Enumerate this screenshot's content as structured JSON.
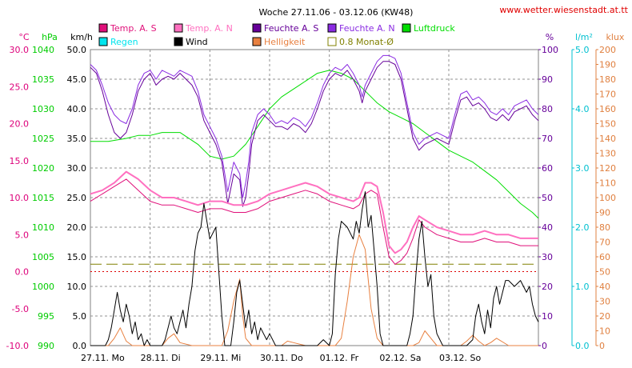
{
  "title": "Woche 27.11.06 - 03.12.06 (KW48)",
  "site": "www.wetter.wiesenstadt.at.tt",
  "chart_data": {
    "type": "line",
    "x_days": [
      "27.11. Mo",
      "28.11. Di",
      "29.11. Mi",
      "30.11. Do",
      "01.12. Fr",
      "02.12. Sa",
      "03.12. So"
    ],
    "xlim_days": [
      0,
      7.5
    ],
    "axes": [
      {
        "key": "temp",
        "unit": "°C",
        "lim": [
          -10,
          30
        ],
        "step": 5,
        "decimals": 1,
        "color": "#dd007a",
        "side": "left"
      },
      {
        "key": "pres",
        "unit": "hPa",
        "lim": [
          990,
          1040
        ],
        "step": 5,
        "decimals": 0,
        "color": "#00cc00",
        "side": "left"
      },
      {
        "key": "wind",
        "unit": "km/h",
        "lim": [
          0,
          50
        ],
        "step": 5,
        "decimals": 1,
        "color": "#000000",
        "side": "left"
      },
      {
        "key": "hum",
        "unit": "%",
        "lim": [
          0,
          100
        ],
        "step": 10,
        "decimals": 0,
        "color": "#660099",
        "side": "right"
      },
      {
        "key": "rain",
        "unit": "l/m²",
        "lim": [
          0,
          5
        ],
        "step": 1,
        "decimals": 1,
        "color": "#00c0d0",
        "side": "right"
      },
      {
        "key": "lux",
        "unit": "klux",
        "lim": [
          0,
          200
        ],
        "step": 10,
        "decimals": 0,
        "color": "#e08040",
        "side": "right"
      }
    ],
    "legend": [
      {
        "label": "Temp. A. S",
        "color": "#e0107a"
      },
      {
        "label": "Temp. A. N",
        "color": "#ff70c0"
      },
      {
        "label": "Feuchte A. S",
        "color": "#660099"
      },
      {
        "label": "Feuchte A. N",
        "color": "#8a2be2"
      },
      {
        "label": "Luftdruck",
        "color": "#00dd00"
      },
      {
        "label": "Regen",
        "color": "#00e5ee"
      },
      {
        "label": "Wind",
        "color": "#000000"
      },
      {
        "label": "Helligkeit",
        "color": "#e88040"
      },
      {
        "label": "0.8 Monat-Ø",
        "color": "#808000",
        "outline": true
      }
    ],
    "reference_lines": [
      {
        "name": "0.8 Monat-Ø",
        "axis": "lux",
        "value": 55,
        "color": "#808000",
        "dash": "14,6"
      },
      {
        "name": "zero",
        "axis": "temp",
        "value": 0,
        "color": "#dd0000",
        "dash": "2,3"
      }
    ],
    "series": [
      {
        "name": "Luftdruck",
        "axis": "pres",
        "color": "#00dd00",
        "width": 1,
        "x": [
          0,
          0.3,
          0.6,
          0.8,
          1.0,
          1.2,
          1.5,
          1.8,
          2.0,
          2.2,
          2.4,
          2.6,
          2.8,
          3.0,
          3.2,
          3.5,
          3.8,
          4.0,
          4.2,
          4.4,
          4.6,
          4.8,
          5.0,
          5.2,
          5.4,
          5.6,
          5.8,
          6.0,
          6.2,
          6.4,
          6.6,
          6.8,
          7.0,
          7.2,
          7.4,
          7.5
        ],
        "y": [
          1024.5,
          1024.5,
          1025,
          1025.5,
          1025.5,
          1026,
          1026,
          1024,
          1022,
          1021.5,
          1022,
          1024,
          1027,
          1030,
          1032,
          1034,
          1036,
          1036.5,
          1036,
          1035,
          1033,
          1031,
          1029.5,
          1028.5,
          1027.5,
          1026,
          1024.5,
          1023,
          1022,
          1021,
          1019.5,
          1018,
          1016,
          1014,
          1012.5,
          1011.5
        ]
      },
      {
        "name": "Feuchte A. N",
        "axis": "hum",
        "color": "#8a2be2",
        "width": 1,
        "x": [
          0,
          0.1,
          0.2,
          0.3,
          0.4,
          0.5,
          0.6,
          0.7,
          0.8,
          0.9,
          1.0,
          1.1,
          1.2,
          1.3,
          1.4,
          1.5,
          1.6,
          1.7,
          1.8,
          1.9,
          2.0,
          2.1,
          2.2,
          2.3,
          2.4,
          2.5,
          2.55,
          2.6,
          2.65,
          2.7,
          2.8,
          2.9,
          3.0,
          3.1,
          3.2,
          3.3,
          3.4,
          3.5,
          3.6,
          3.7,
          3.8,
          3.9,
          4.0,
          4.1,
          4.2,
          4.3,
          4.4,
          4.5,
          4.55,
          4.6,
          4.7,
          4.8,
          4.9,
          5.0,
          5.1,
          5.2,
          5.3,
          5.4,
          5.5,
          5.6,
          5.7,
          5.8,
          5.9,
          6.0,
          6.1,
          6.2,
          6.3,
          6.4,
          6.5,
          6.6,
          6.7,
          6.8,
          6.9,
          7.0,
          7.1,
          7.2,
          7.3,
          7.4,
          7.5
        ],
        "y": [
          95,
          93,
          88,
          82,
          78,
          76,
          75,
          80,
          88,
          92,
          93,
          90,
          93,
          92,
          91,
          93,
          92,
          91,
          86,
          78,
          74,
          70,
          64,
          52,
          62,
          58,
          50,
          55,
          62,
          72,
          78,
          80,
          78,
          75,
          76,
          75,
          77,
          76,
          74,
          77,
          82,
          88,
          92,
          94,
          93,
          95,
          92,
          88,
          84,
          88,
          92,
          96,
          98,
          98,
          97,
          92,
          82,
          72,
          68,
          70,
          71,
          72,
          71,
          70,
          78,
          85,
          86,
          83,
          84,
          82,
          79,
          78,
          80,
          78,
          81,
          82,
          83,
          80,
          78
        ]
      },
      {
        "name": "Feuchte A. S",
        "axis": "hum",
        "color": "#660099",
        "width": 1,
        "x": [
          0,
          0.1,
          0.2,
          0.3,
          0.4,
          0.5,
          0.6,
          0.7,
          0.8,
          0.9,
          1.0,
          1.1,
          1.2,
          1.3,
          1.4,
          1.5,
          1.6,
          1.7,
          1.8,
          1.9,
          2.0,
          2.1,
          2.2,
          2.3,
          2.4,
          2.5,
          2.55,
          2.6,
          2.65,
          2.7,
          2.8,
          2.9,
          3.0,
          3.1,
          3.2,
          3.3,
          3.4,
          3.5,
          3.6,
          3.7,
          3.8,
          3.9,
          4.0,
          4.1,
          4.2,
          4.3,
          4.4,
          4.5,
          4.55,
          4.6,
          4.7,
          4.8,
          4.9,
          5.0,
          5.1,
          5.2,
          5.3,
          5.4,
          5.5,
          5.6,
          5.7,
          5.8,
          5.9,
          6.0,
          6.1,
          6.2,
          6.3,
          6.4,
          6.5,
          6.6,
          6.7,
          6.8,
          6.9,
          7.0,
          7.1,
          7.2,
          7.3,
          7.4,
          7.5
        ],
        "y": [
          94,
          92,
          86,
          78,
          72,
          70,
          72,
          78,
          86,
          90,
          92,
          88,
          90,
          91,
          90,
          92,
          90,
          88,
          84,
          76,
          72,
          68,
          62,
          48,
          58,
          56,
          47,
          50,
          58,
          68,
          76,
          78,
          76,
          74,
          74,
          73,
          75,
          74,
          72,
          75,
          80,
          86,
          90,
          92,
          91,
          93,
          90,
          86,
          82,
          86,
          90,
          94,
          96,
          96,
          95,
          90,
          80,
          70,
          66,
          68,
          69,
          70,
          69,
          68,
          76,
          83,
          84,
          81,
          82,
          80,
          77,
          76,
          78,
          76,
          79,
          80,
          81,
          78,
          76
        ]
      },
      {
        "name": "Temp. A. S",
        "axis": "temp",
        "color": "#e0107a",
        "width": 1,
        "x": [
          0,
          0.2,
          0.4,
          0.6,
          0.8,
          1.0,
          1.2,
          1.4,
          1.6,
          1.8,
          2.0,
          2.2,
          2.4,
          2.6,
          2.8,
          3.0,
          3.2,
          3.4,
          3.6,
          3.8,
          4.0,
          4.2,
          4.4,
          4.5,
          4.6,
          4.7,
          4.8,
          4.9,
          5.0,
          5.1,
          5.2,
          5.3,
          5.4,
          5.5,
          5.6,
          5.8,
          6.0,
          6.2,
          6.4,
          6.6,
          6.8,
          7.0,
          7.2,
          7.4,
          7.5
        ],
        "y": [
          9.5,
          10.5,
          11.5,
          12.5,
          11,
          9.5,
          9,
          9,
          8.5,
          8,
          8.5,
          8.5,
          8,
          8,
          8.5,
          9.5,
          10,
          10.5,
          11,
          10.5,
          9.5,
          9,
          8.5,
          9,
          10.5,
          11,
          10.5,
          6,
          2,
          1,
          1.5,
          2.5,
          4.5,
          7,
          6,
          5,
          4.5,
          4,
          4,
          4.5,
          4,
          4,
          3.5,
          3.5,
          3.5
        ]
      },
      {
        "name": "Temp. A. N",
        "axis": "temp",
        "color": "#ff70c0",
        "width": 2,
        "x": [
          0,
          0.2,
          0.4,
          0.6,
          0.8,
          1.0,
          1.2,
          1.4,
          1.6,
          1.8,
          2.0,
          2.2,
          2.4,
          2.6,
          2.8,
          3.0,
          3.2,
          3.4,
          3.6,
          3.8,
          4.0,
          4.2,
          4.4,
          4.5,
          4.6,
          4.7,
          4.8,
          4.9,
          5.0,
          5.1,
          5.2,
          5.3,
          5.4,
          5.5,
          5.6,
          5.8,
          6.0,
          6.2,
          6.4,
          6.6,
          6.8,
          7.0,
          7.2,
          7.4,
          7.5
        ],
        "y": [
          10.5,
          11,
          12,
          13.5,
          12.5,
          11,
          10,
          10,
          9.5,
          9,
          9.5,
          9.5,
          9,
          9,
          9.5,
          10.5,
          11,
          11.5,
          12,
          11.5,
          10.5,
          10,
          9.5,
          10,
          12,
          12,
          11.5,
          8,
          3.5,
          2.5,
          3,
          4,
          6,
          7.5,
          7,
          6,
          5.5,
          5,
          5,
          5.5,
          5,
          5,
          4.5,
          4.5,
          4.5
        ]
      },
      {
        "name": "Helligkeit",
        "axis": "lux",
        "color": "#e88040",
        "width": 1,
        "x": [
          0,
          0.3,
          0.4,
          0.5,
          0.6,
          0.7,
          0.9,
          1.0,
          1.2,
          1.3,
          1.4,
          1.5,
          1.7,
          1.9,
          2.2,
          2.3,
          2.4,
          2.5,
          2.55,
          2.6,
          2.7,
          2.8,
          3.0,
          3.2,
          3.3,
          3.4,
          3.6,
          3.8,
          4.0,
          4.1,
          4.2,
          4.3,
          4.4,
          4.5,
          4.6,
          4.7,
          4.8,
          4.9,
          5.0,
          5.1,
          5.2,
          5.3,
          5.4,
          5.5,
          5.6,
          5.7,
          5.8,
          6.0,
          6.2,
          6.3,
          6.4,
          6.5,
          6.6,
          6.7,
          6.8,
          7.0,
          7.5
        ],
        "y": [
          0,
          0,
          5,
          12,
          3,
          0,
          0,
          0,
          0,
          5,
          8,
          2,
          0,
          0,
          0,
          10,
          30,
          45,
          20,
          5,
          0,
          0,
          0,
          0,
          3,
          2,
          0,
          0,
          0,
          0,
          5,
          30,
          60,
          75,
          65,
          25,
          5,
          0,
          0,
          0,
          0,
          0,
          0,
          2,
          10,
          5,
          0,
          0,
          0,
          3,
          7,
          3,
          0,
          2,
          5,
          0,
          0
        ]
      },
      {
        "name": "Wind",
        "axis": "wind",
        "color": "#000000",
        "width": 1,
        "x": [
          0,
          0.25,
          0.3,
          0.35,
          0.4,
          0.45,
          0.5,
          0.55,
          0.6,
          0.65,
          0.7,
          0.75,
          0.8,
          0.85,
          0.9,
          0.95,
          1.0,
          1.1,
          1.15,
          1.2,
          1.25,
          1.3,
          1.35,
          1.4,
          1.45,
          1.5,
          1.55,
          1.6,
          1.65,
          1.7,
          1.75,
          1.8,
          1.85,
          1.9,
          2.0,
          2.1,
          2.2,
          2.25,
          2.3,
          2.35,
          2.4,
          2.45,
          2.5,
          2.55,
          2.6,
          2.65,
          2.7,
          2.75,
          2.8,
          2.85,
          2.9,
          2.95,
          3.0,
          3.1,
          3.2,
          3.3,
          3.4,
          3.5,
          3.6,
          3.7,
          3.8,
          3.9,
          4.0,
          4.05,
          4.1,
          4.15,
          4.2,
          4.3,
          4.4,
          4.45,
          4.5,
          4.55,
          4.6,
          4.65,
          4.7,
          4.75,
          4.8,
          4.85,
          4.9,
          4.95,
          5.0,
          5.1,
          5.2,
          5.3,
          5.35,
          5.4,
          5.45,
          5.5,
          5.55,
          5.6,
          5.65,
          5.7,
          5.75,
          5.8,
          5.9,
          6.0,
          6.1,
          6.2,
          6.3,
          6.4,
          6.45,
          6.5,
          6.55,
          6.6,
          6.65,
          6.7,
          6.75,
          6.8,
          6.85,
          6.9,
          6.95,
          7.0,
          7.1,
          7.2,
          7.3,
          7.35,
          7.4,
          7.45,
          7.5
        ],
        "y": [
          0,
          0,
          1,
          3,
          6,
          9,
          6,
          4,
          7,
          5,
          2,
          4,
          1,
          2,
          0,
          1,
          0,
          0,
          0,
          0,
          1,
          3,
          5,
          3,
          2,
          4,
          6,
          3,
          7,
          10,
          16,
          19,
          20,
          24,
          18,
          20,
          5,
          0,
          0,
          0,
          4,
          9,
          11,
          7,
          3,
          6,
          2,
          4,
          1,
          3,
          2,
          1,
          2,
          0,
          0,
          0,
          0,
          0,
          0,
          0,
          0,
          1,
          0,
          2,
          12,
          18,
          21,
          20,
          18,
          21,
          19,
          23,
          26,
          20,
          22,
          16,
          10,
          2,
          0,
          0,
          0,
          0,
          0,
          0,
          2,
          5,
          12,
          18,
          21,
          15,
          10,
          12,
          5,
          2,
          0,
          0,
          0,
          0,
          0,
          1,
          5,
          7,
          4,
          2,
          6,
          3,
          8,
          10,
          7,
          9,
          11,
          11,
          10,
          11,
          9,
          10,
          7,
          5,
          4
        ]
      }
    ]
  }
}
